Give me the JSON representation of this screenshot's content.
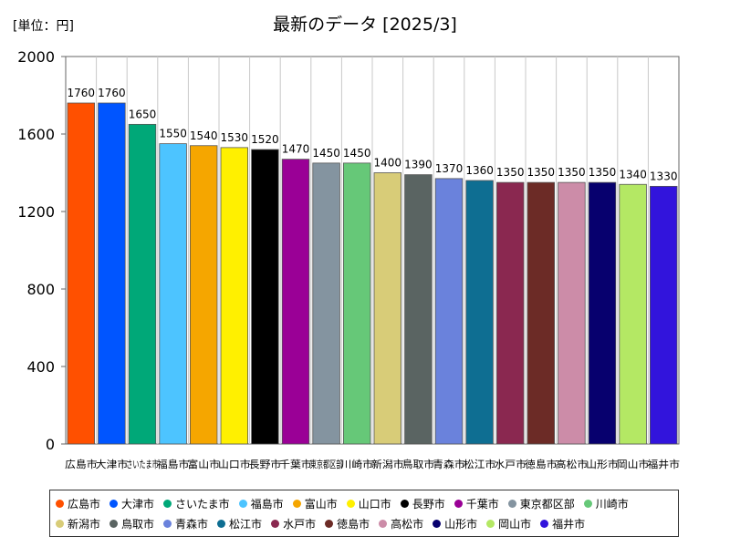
{
  "unit_label": "[単位：円]",
  "chart_data": {
    "type": "bar",
    "title": "最新のデータ [2025/3]",
    "xlabel": "",
    "ylabel": "",
    "ylim": [
      0,
      2000
    ],
    "yticks": [
      0,
      400,
      800,
      1200,
      1600,
      2000
    ],
    "grid": true,
    "legend_position": "bottom",
    "categories": [
      "広島市",
      "大津市",
      "さいたま市",
      "福島市",
      "富山市",
      "山口市",
      "長野市",
      "千葉市",
      "東京都区部",
      "川崎市",
      "新潟市",
      "鳥取市",
      "青森市",
      "松江市",
      "水戸市",
      "徳島市",
      "高松市",
      "山形市",
      "岡山市",
      "福井市"
    ],
    "values": [
      1760,
      1760,
      1650,
      1550,
      1540,
      1530,
      1520,
      1470,
      1450,
      1450,
      1400,
      1390,
      1370,
      1360,
      1350,
      1350,
      1350,
      1350,
      1340,
      1330
    ],
    "colors": [
      "#ff5000",
      "#0055ff",
      "#00a878",
      "#4dc4ff",
      "#f5a600",
      "#fff000",
      "#000000",
      "#9a0096",
      "#8494a0",
      "#66c878",
      "#d8cc78",
      "#5a6462",
      "#6a82dc",
      "#0e6e92",
      "#8a2850",
      "#6c2b26",
      "#cc8ca8",
      "#07006e",
      "#b4e864",
      "#3214dc"
    ]
  }
}
